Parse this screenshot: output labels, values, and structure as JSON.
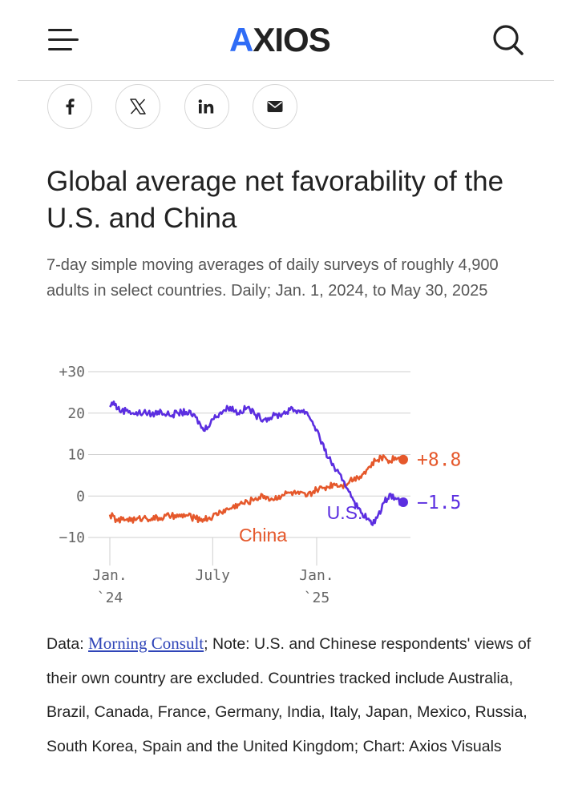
{
  "header": {
    "logo": {
      "first": "A",
      "rest": "XIOS"
    },
    "menu_icon": "hamburger-menu-icon",
    "search_icon": "search-icon"
  },
  "share": {
    "buttons": [
      {
        "name": "facebook",
        "icon": "facebook-icon"
      },
      {
        "name": "x",
        "icon": "x-icon"
      },
      {
        "name": "linkedin",
        "icon": "linkedin-icon"
      },
      {
        "name": "email",
        "icon": "email-icon"
      }
    ]
  },
  "article": {
    "title": "Global average net favorability of the U.S. and China",
    "subtitle": "7-day simple moving averages of daily surveys of roughly 4,900 adults in select countries. Daily; Jan. 1, 2024, to May 30, 2025"
  },
  "chart_data": {
    "type": "line",
    "title": "Global average net favorability of the U.S. and China",
    "ylim": [
      -10,
      30
    ],
    "xlim": [
      "2024-01-01",
      "2025-05-30"
    ],
    "y_ticks": [
      {
        "value": 30,
        "label": "+30"
      },
      {
        "value": 20,
        "label": "20"
      },
      {
        "value": 10,
        "label": "10"
      },
      {
        "value": 0,
        "label": "0"
      },
      {
        "value": -10,
        "label": "−10"
      }
    ],
    "x_ticks": [
      {
        "value": "2024-01-01",
        "line1": "Jan.",
        "line2": "`24"
      },
      {
        "value": "2024-07-01",
        "line1": "July",
        "line2": ""
      },
      {
        "value": "2025-01-01",
        "line1": "Jan.",
        "line2": "`25"
      }
    ],
    "grid": true,
    "series": [
      {
        "name": "U.S.",
        "color": "#5b2ee0",
        "end_label": "−1.5",
        "points": [
          [
            "2024-01-01",
            21.5
          ],
          [
            "2024-01-08",
            22.8
          ],
          [
            "2024-01-15",
            21.0
          ],
          [
            "2024-01-22",
            20.5
          ],
          [
            "2024-02-01",
            20.8
          ],
          [
            "2024-02-15",
            19.8
          ],
          [
            "2024-03-01",
            20.2
          ],
          [
            "2024-03-15",
            19.7
          ],
          [
            "2024-04-01",
            20.4
          ],
          [
            "2024-04-15",
            19.5
          ],
          [
            "2024-05-01",
            20.0
          ],
          [
            "2024-05-15",
            20.3
          ],
          [
            "2024-06-01",
            19.0
          ],
          [
            "2024-06-15",
            15.8
          ],
          [
            "2024-07-01",
            18.5
          ],
          [
            "2024-07-15",
            20.2
          ],
          [
            "2024-08-01",
            21.5
          ],
          [
            "2024-08-15",
            20.0
          ],
          [
            "2024-09-01",
            21.4
          ],
          [
            "2024-09-15",
            19.5
          ],
          [
            "2024-10-01",
            18.5
          ],
          [
            "2024-10-15",
            19.2
          ],
          [
            "2024-11-01",
            19.8
          ],
          [
            "2024-11-15",
            20.8
          ],
          [
            "2024-12-01",
            20.6
          ],
          [
            "2024-12-15",
            20.2
          ],
          [
            "2025-01-01",
            16.0
          ],
          [
            "2025-01-15",
            11.0
          ],
          [
            "2025-02-01",
            7.0
          ],
          [
            "2025-02-15",
            3.8
          ],
          [
            "2025-03-01",
            1.0
          ],
          [
            "2025-03-15",
            -3.0
          ],
          [
            "2025-04-01",
            -5.5
          ],
          [
            "2025-04-10",
            -7.0
          ],
          [
            "2025-04-20",
            -4.5
          ],
          [
            "2025-05-01",
            -1.5
          ],
          [
            "2025-05-10",
            0.5
          ],
          [
            "2025-05-20",
            -0.5
          ],
          [
            "2025-05-30",
            -1.5
          ]
        ]
      },
      {
        "name": "China",
        "color": "#e5582b",
        "end_label": "+8.8",
        "points": [
          [
            "2024-01-01",
            -4.5
          ],
          [
            "2024-01-15",
            -6.0
          ],
          [
            "2024-02-01",
            -5.5
          ],
          [
            "2024-02-15",
            -5.8
          ],
          [
            "2024-03-01",
            -5.2
          ],
          [
            "2024-03-15",
            -5.4
          ],
          [
            "2024-04-01",
            -5.3
          ],
          [
            "2024-04-15",
            -4.8
          ],
          [
            "2024-05-01",
            -5.0
          ],
          [
            "2024-05-15",
            -4.6
          ],
          [
            "2024-06-01",
            -5.5
          ],
          [
            "2024-06-15",
            -5.6
          ],
          [
            "2024-07-01",
            -5.0
          ],
          [
            "2024-07-15",
            -3.8
          ],
          [
            "2024-08-01",
            -3.0
          ],
          [
            "2024-08-15",
            -2.0
          ],
          [
            "2024-09-01",
            -1.5
          ],
          [
            "2024-09-15",
            -0.5
          ],
          [
            "2024-10-01",
            0.0
          ],
          [
            "2024-10-15",
            -0.8
          ],
          [
            "2024-11-01",
            0.3
          ],
          [
            "2024-11-15",
            0.8
          ],
          [
            "2024-12-01",
            0.5
          ],
          [
            "2024-12-15",
            0.0
          ],
          [
            "2025-01-01",
            1.5
          ],
          [
            "2025-01-15",
            2.0
          ],
          [
            "2025-02-01",
            3.0
          ],
          [
            "2025-02-15",
            2.5
          ],
          [
            "2025-03-01",
            3.8
          ],
          [
            "2025-03-15",
            4.5
          ],
          [
            "2025-04-01",
            6.5
          ],
          [
            "2025-04-15",
            8.5
          ],
          [
            "2025-05-01",
            9.5
          ],
          [
            "2025-05-10",
            8.5
          ],
          [
            "2025-05-20",
            9.3
          ],
          [
            "2025-05-30",
            8.8
          ]
        ]
      }
    ]
  },
  "footer": {
    "data_prefix": "Data: ",
    "source_link": "Morning Consult",
    "rest": "; Note: U.S. and Chinese respondents' views of their own country are excluded. Countries tracked include Australia, Brazil, Canada, France, Germany, India, Italy, Japan, Mexico, Russia, South Korea, Spain and the United Kingdom; Chart: Axios Visuals"
  }
}
